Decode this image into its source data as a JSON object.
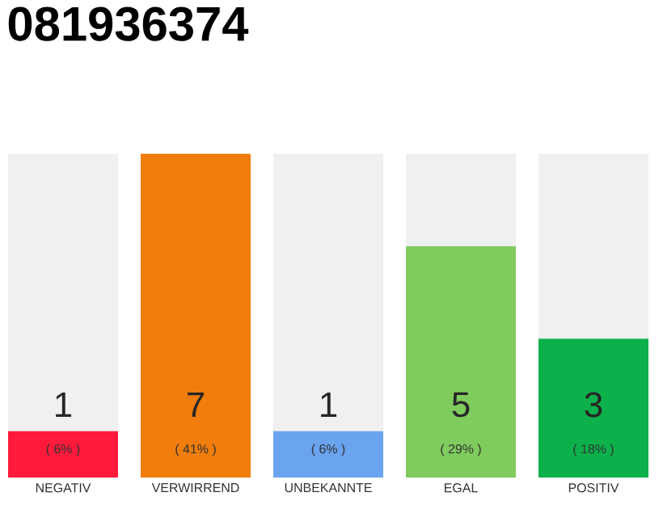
{
  "chart_data": {
    "type": "bar",
    "title": "081936374",
    "categories": [
      "NEGATIV",
      "VERWIRREND",
      "UNBEKANNTE",
      "EGAL",
      "POSITIV"
    ],
    "values": [
      1,
      7,
      1,
      5,
      3
    ],
    "colors": [
      "#ff1a3c",
      "#f07d0c",
      "#6aa3ee",
      "#7fcb5e",
      "#0db14b"
    ],
    "data_labels": true,
    "annotations": [
      "( 6% )",
      "( 41% )",
      "( 6% )",
      "( 29% )",
      "( 18% )"
    ]
  }
}
